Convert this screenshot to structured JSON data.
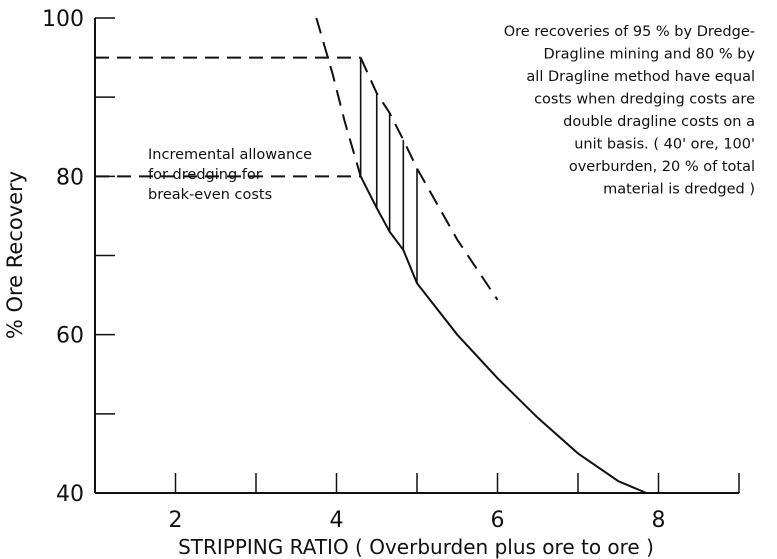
{
  "chart_data": {
    "type": "line",
    "title": "",
    "xlabel": "STRIPPING RATIO ( Overburden plus ore to ore )",
    "ylabel": "% Ore Recovery",
    "xlim": [
      1,
      9
    ],
    "ylim": [
      40,
      100
    ],
    "x_ticks": [
      2,
      4,
      6,
      8
    ],
    "x_minor_ticks": [
      1,
      2,
      3,
      4,
      5,
      6,
      7,
      8,
      9
    ],
    "y_ticks": [
      40,
      60,
      80,
      100
    ],
    "y_minor_ticks": [
      40,
      50,
      60,
      70,
      80,
      90,
      100
    ],
    "grid": false,
    "series": [
      {
        "style": "solid",
        "x": [
          4.3,
          4.5,
          4.66,
          4.83,
          5.0,
          5.5,
          6.0,
          6.5,
          7.0,
          7.5,
          7.85
        ],
        "y": [
          80,
          76,
          73,
          70.7,
          66.5,
          60,
          54.5,
          49.5,
          45,
          41.5,
          40
        ]
      },
      {
        "style": "dashed",
        "x": [
          4.3,
          4.5,
          4.66,
          4.83,
          5.0,
          5.5,
          6.0
        ],
        "y": [
          95,
          90.5,
          88,
          84.6,
          81,
          72,
          64.4
        ]
      },
      {
        "style": "dashed",
        "x": [
          3.75,
          3.95,
          4.1,
          4.3
        ],
        "y": [
          100,
          93,
          87,
          80
        ]
      }
    ],
    "reference_lines": [
      {
        "style": "dashed",
        "y": 95,
        "x_range": [
          1,
          4.3
        ]
      },
      {
        "style": "dashed",
        "y": 80,
        "x_range": [
          1,
          4.3
        ]
      }
    ],
    "hatch_x": [
      4.3,
      4.5,
      4.66,
      4.83,
      5.0
    ],
    "annotations": {
      "left": [
        "Incremental allowance",
        "for dredging for",
        "break-even costs"
      ],
      "right": [
        "Ore recoveries of 95 % by Dredge-",
        "Dragline mining  and  80 % by",
        "all Dragline method have equal",
        "costs when dredging costs are",
        "double  dragline costs on a",
        "unit basis. ( 40' ore, 100'",
        "overburden, 20 % of total",
        "material is dredged )"
      ]
    }
  }
}
